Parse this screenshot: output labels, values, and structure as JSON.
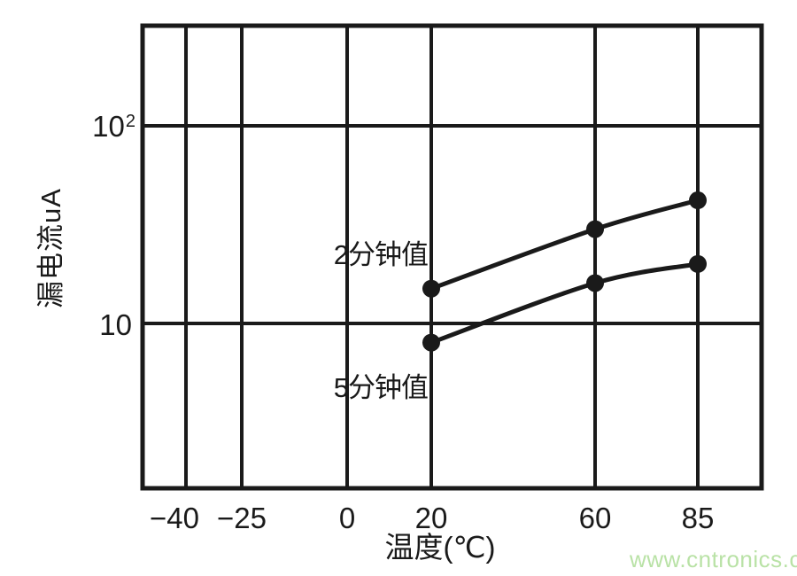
{
  "watermark": {
    "text": "www.cntronics.com",
    "color": "#b9e2a6"
  },
  "colors": {
    "ink": "#1a1a1a",
    "background": "#ffffff"
  },
  "chart_data": {
    "type": "line",
    "title": "",
    "xlabel": "温度(℃)",
    "ylabel": "漏电流uA",
    "x_scale": "linear",
    "y_scale": "log10",
    "xlim": [
      -50,
      100
    ],
    "ylim": [
      1.5,
      300
    ],
    "grid": true,
    "marker": "circle",
    "line_color": "#1a1a1a",
    "x_ticks": [
      {
        "label": "−40",
        "value": -40
      },
      {
        "label": "−25",
        "value": -25
      },
      {
        "label": "0",
        "value": 0
      },
      {
        "label": "20",
        "value": 20
      },
      {
        "label": "60",
        "value": 60
      },
      {
        "label": "85",
        "value": 85
      }
    ],
    "y_ticks": [
      {
        "base": "10",
        "sup": "2",
        "value": 100
      },
      {
        "base": "10",
        "sup": "",
        "value": 10
      }
    ],
    "x": [
      20,
      60,
      85
    ],
    "series": [
      {
        "name": "2分钟值",
        "values": [
          15,
          30,
          42
        ]
      },
      {
        "name": "5分钟值",
        "values": [
          8,
          16,
          20
        ]
      }
    ]
  }
}
